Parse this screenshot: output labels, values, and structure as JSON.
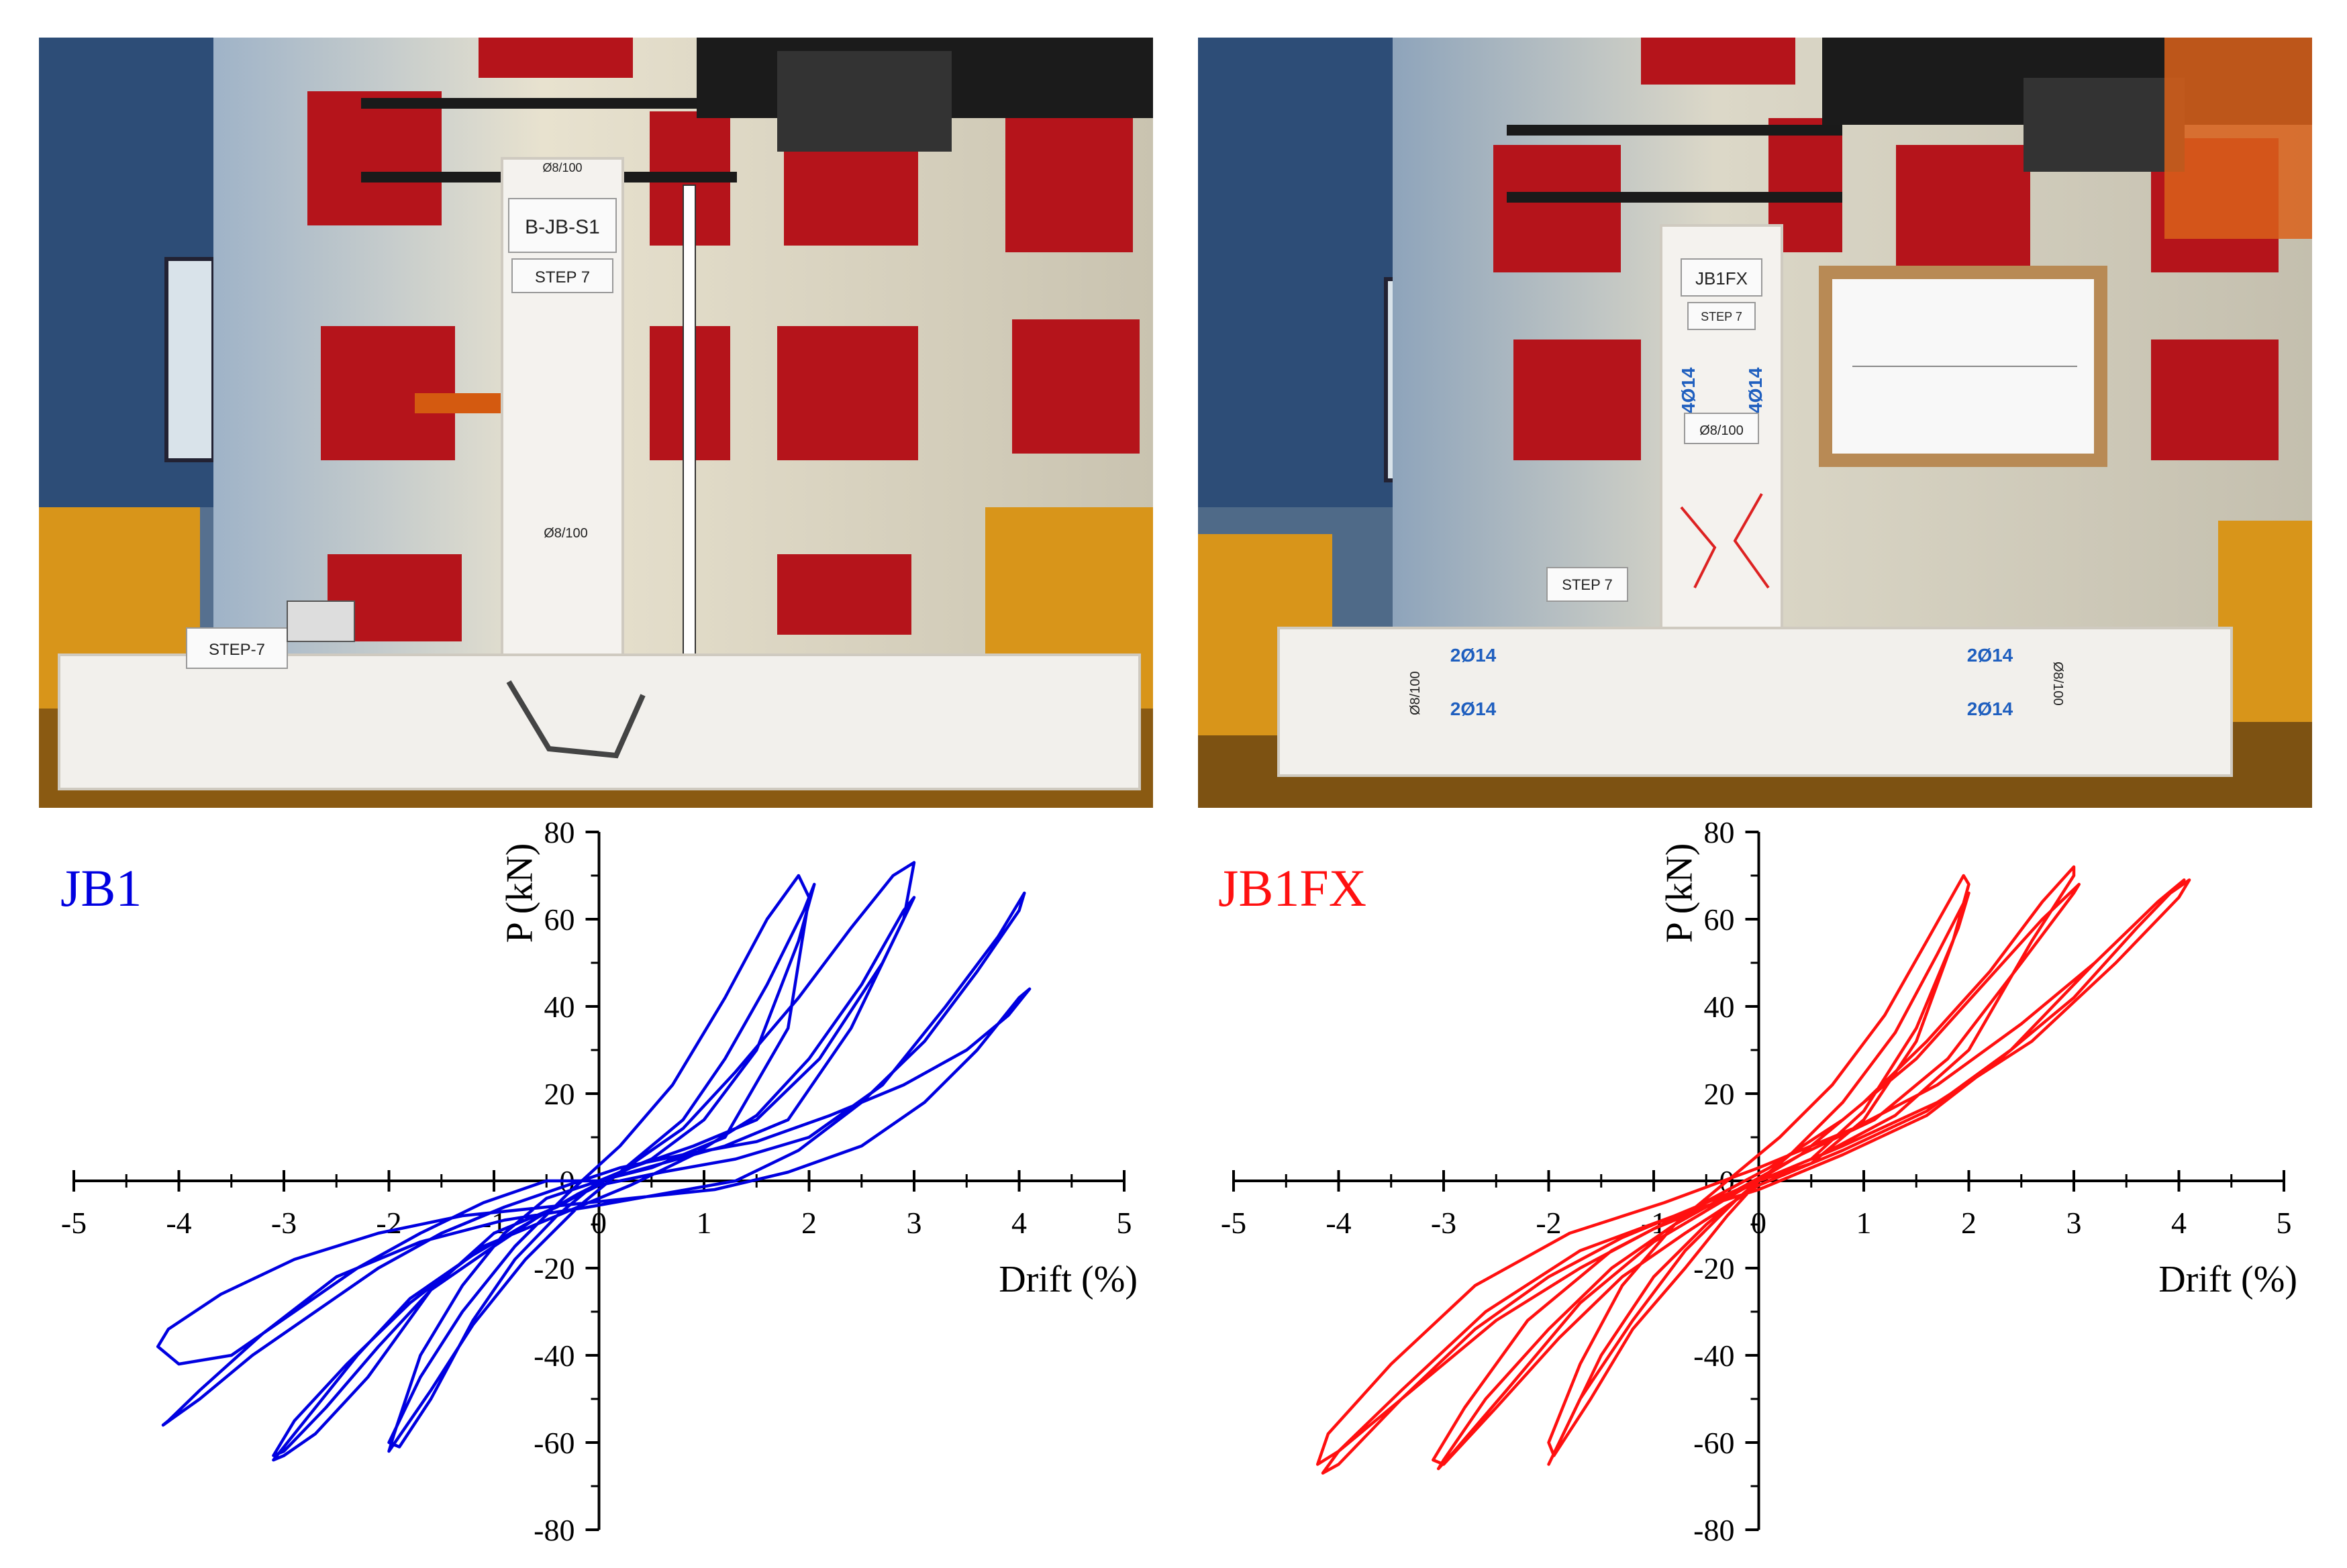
{
  "photos": [
    {
      "specimen_sign": "B-JB-S1",
      "step_sign": "STEP 7",
      "floor_sign": "STEP-7",
      "rebar_col_top": "Ø8/100",
      "rebar_col_mid": "Ø8/100"
    },
    {
      "specimen_sign": "JB1FX",
      "step_sign": "STEP 7",
      "floor_sign": "STEP 7",
      "col_bars_left": "4Ø14",
      "col_bars_right": "4Ø14",
      "col_stirrups": "Ø8/100",
      "beam_bars_top_left": "2Ø14",
      "beam_bars_bottom_left": "2Ø14",
      "beam_bars_top_right": "2Ø14",
      "beam_bars_bottom_right": "2Ø14",
      "beam_stirrups_left": "Ø8/100",
      "beam_stirrups_right": "Ø8/100"
    }
  ],
  "chart_data": [
    {
      "type": "line",
      "panel_label": "JB1",
      "color": "#0000e0",
      "xlabel": "Drift (%)",
      "ylabel": "P (kN)",
      "xlim": [
        -5,
        5
      ],
      "ylim": [
        -80,
        80
      ],
      "xticks": [
        -5,
        -4,
        -3,
        -2,
        -1,
        0,
        1,
        2,
        3,
        4,
        5
      ],
      "yticks": [
        -80,
        -60,
        -40,
        -20,
        0,
        20,
        40,
        60,
        80
      ],
      "grid": false,
      "series": [
        {
          "x": [
            0,
            0.5,
            1.2,
            1.8,
            2.0,
            1.9,
            1.6,
            1.2,
            0.7,
            0.2,
            -0.3,
            -0.8,
            -1.3,
            -1.7,
            -2.0,
            -1.9,
            -1.6,
            -1.2,
            -0.8,
            -0.4,
            0,
            0.5,
            1.0,
            1.5,
            1.9,
            2.05,
            1.95,
            1.6,
            1.2,
            0.8,
            0.3,
            -0.2,
            -0.7,
            -1.2,
            -1.6,
            -2.0,
            -1.95,
            -1.7,
            -1.3,
            -0.9,
            -0.5,
            0,
            0.6,
            1.2,
            1.8,
            2.4,
            2.9,
            3.0,
            2.8,
            2.4,
            1.9,
            1.3,
            0.8,
            0.2,
            -0.4,
            -1.0,
            -1.6,
            -2.2,
            -2.7,
            -3.0,
            -3.1,
            -2.8,
            -2.3,
            -1.8,
            -1.2,
            -0.7,
            -0.2,
            0.3,
            0.9,
            1.5,
            2.1,
            2.7,
            3.0,
            2.9,
            2.5,
            2.0,
            1.5,
            0.9,
            0.3,
            -0.4,
            -1.1,
            -1.8,
            -2.4,
            -2.9,
            -3.1,
            -3.0,
            -2.6,
            -2.1,
            -1.6,
            -1.0,
            -0.5,
            0,
            0.6,
            1.3,
            2.0,
            2.7,
            3.3,
            3.8,
            4.05,
            4.0,
            3.6,
            3.1,
            2.5,
            1.9,
            1.3,
            0.6,
            -0.1,
            -0.9,
            -1.7,
            -2.5,
            -3.2,
            -3.8,
            -4.1,
            -4.15,
            -3.8,
            -3.3,
            -2.7,
            -2.1,
            -1.5,
            -0.9,
            -0.3,
            0.2,
            0.8,
            1.5,
            2.2,
            2.9,
            3.5,
            3.9,
            4.1,
            4.0,
            3.6,
            3.1,
            2.5,
            1.8,
            1.1,
            0.3,
            -0.5,
            -1.3,
            -2.1,
            -2.9,
            -3.6,
            -4.1,
            -4.2,
            -4.0,
            -3.5,
            -2.9,
            -2.3,
            -1.7,
            -1.1,
            -0.5,
            0
          ],
          "y": [
            0,
            3,
            10,
            35,
            65,
            70,
            60,
            42,
            22,
            8,
            -3,
            -15,
            -30,
            -45,
            -60,
            -61,
            -50,
            -32,
            -18,
            -8,
            0,
            5,
            14,
            30,
            55,
            68,
            62,
            45,
            28,
            14,
            4,
            -6,
            -18,
            -33,
            -48,
            -62,
            -58,
            -40,
            -24,
            -12,
            -4,
            0,
            4,
            8,
            14,
            35,
            60,
            73,
            70,
            58,
            42,
            25,
            12,
            2,
            -6,
            -12,
            -25,
            -45,
            -58,
            -63,
            -64,
            -55,
            -40,
            -27,
            -17,
            -10,
            -3,
            3,
            8,
            14,
            28,
            50,
            65,
            62,
            45,
            28,
            15,
            6,
            -1,
            -8,
            -15,
            -28,
            -42,
            -55,
            -63,
            -62,
            -52,
            -38,
            -25,
            -15,
            -7,
            -1,
            2,
            5,
            10,
            22,
            40,
            56,
            66,
            62,
            48,
            32,
            18,
            7,
            0,
            -3,
            -6,
            -9,
            -14,
            -22,
            -35,
            -48,
            -55,
            -56,
            -50,
            -40,
            -30,
            -20,
            -12,
            -6,
            -1,
            3,
            6,
            9,
            15,
            22,
            30,
            38,
            44,
            42,
            30,
            18,
            8,
            2,
            -2,
            -4,
            -6,
            -8,
            -12,
            -18,
            -26,
            -34,
            -38,
            -42,
            -40,
            -30,
            -20,
            -12,
            -5,
            0,
            0
          ]
        }
      ]
    },
    {
      "type": "line",
      "panel_label": "JB1FX",
      "color": "#ff1010",
      "xlabel": "Drift (%)",
      "ylabel": "P (kN)",
      "xlim": [
        -5,
        5
      ],
      "ylim": [
        -80,
        80
      ],
      "xticks": [
        -5,
        -4,
        -3,
        -2,
        -1,
        0,
        1,
        2,
        3,
        4,
        5
      ],
      "yticks": [
        -80,
        -60,
        -40,
        -20,
        0,
        20,
        40,
        60,
        80
      ],
      "grid": false,
      "series": [
        {
          "x": [
            0,
            0.5,
            1.0,
            1.5,
            1.85,
            2.0,
            1.95,
            1.6,
            1.2,
            0.7,
            0.2,
            -0.3,
            -0.8,
            -1.3,
            -1.7,
            -2.0,
            -1.95,
            -1.6,
            -1.2,
            -0.7,
            -0.3,
            0,
            0.5,
            1.0,
            1.5,
            1.9,
            2.0,
            1.7,
            1.3,
            0.8,
            0.3,
            -0.2,
            -0.7,
            -1.2,
            -1.7,
            -2.0,
            -1.9,
            -1.5,
            -1.0,
            -0.5,
            0,
            0.6,
            1.3,
            2.0,
            2.6,
            3.0,
            3.0,
            2.7,
            2.2,
            1.6,
            1.0,
            0.4,
            -0.3,
            -1.0,
            -1.7,
            -2.4,
            -2.9,
            -3.05,
            -3.0,
            -2.6,
            -2.0,
            -1.4,
            -0.8,
            -0.2,
            0.4,
            1.1,
            1.8,
            2.5,
            3.0,
            3.05,
            2.7,
            2.1,
            1.5,
            0.8,
            0.1,
            -0.6,
            -1.4,
            -2.2,
            -2.8,
            -3.1,
            -3.0,
            -2.5,
            -1.9,
            -1.3,
            -0.7,
            0,
            0.8,
            1.6,
            2.4,
            3.2,
            3.8,
            4.05,
            4.0,
            3.6,
            3.0,
            2.3,
            1.6,
            0.8,
            0,
            -0.8,
            -1.7,
            -2.6,
            -3.4,
            -4.0,
            -4.15,
            -4.0,
            -3.4,
            -2.7,
            -2.0,
            -1.3,
            -0.6,
            0,
            0.8,
            1.7,
            2.6,
            3.4,
            4.0,
            4.1,
            3.8,
            3.2,
            2.5,
            1.7,
            0.9,
            0,
            -0.9,
            -1.8,
            -2.7,
            -3.5,
            -4.1,
            -4.2,
            -4.0,
            -3.3,
            -2.5,
            -1.7,
            -1.0,
            -0.4,
            0
          ],
          "y": [
            0,
            4,
            14,
            32,
            55,
            68,
            70,
            55,
            38,
            22,
            10,
            0,
            -10,
            -24,
            -42,
            -60,
            -63,
            -50,
            -34,
            -20,
            -8,
            0,
            5,
            16,
            35,
            58,
            66,
            52,
            34,
            18,
            6,
            -4,
            -16,
            -32,
            -50,
            -65,
            -60,
            -40,
            -22,
            -10,
            0,
            6,
            15,
            30,
            55,
            70,
            72,
            64,
            48,
            32,
            18,
            6,
            -4,
            -14,
            -28,
            -48,
            -62,
            -66,
            -64,
            -50,
            -34,
            -20,
            -10,
            -2,
            6,
            14,
            28,
            50,
            66,
            68,
            60,
            44,
            28,
            14,
            3,
            -6,
            -16,
            -32,
            -52,
            -64,
            -65,
            -52,
            -36,
            -22,
            -12,
            -1,
            7,
            16,
            30,
            50,
            64,
            69,
            68,
            58,
            42,
            28,
            15,
            6,
            -2,
            -8,
            -16,
            -30,
            -48,
            -62,
            -67,
            -65,
            -50,
            -34,
            -22,
            -13,
            -6,
            0,
            8,
            18,
            32,
            50,
            65,
            69,
            64,
            50,
            36,
            22,
            12,
            3,
            -5,
            -12,
            -24,
            -42,
            -58,
            -65,
            -62,
            -48,
            -32,
            -20,
            -11,
            -5,
            0
          ]
        }
      ]
    }
  ]
}
